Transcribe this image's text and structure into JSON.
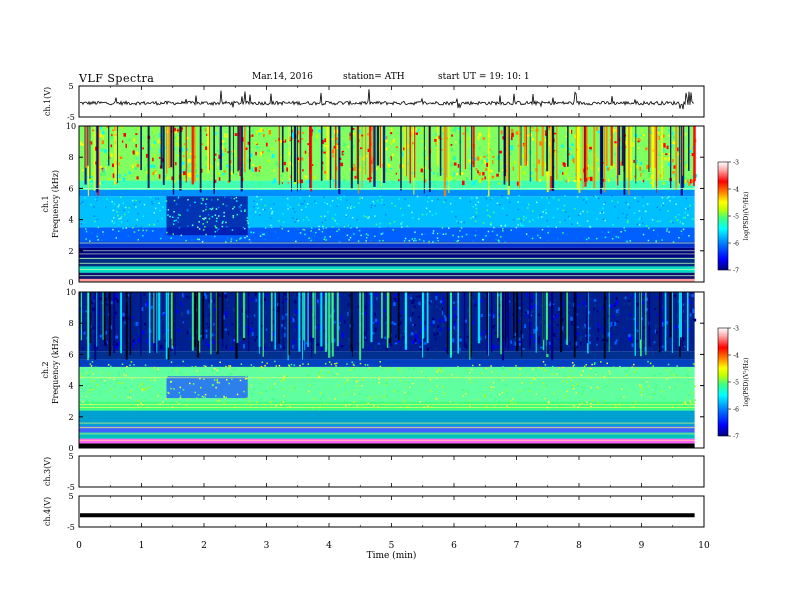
{
  "header": {
    "title": "VLF  Spectra",
    "date": "Mar.14, 2016",
    "station": "station= ATH",
    "start_ut": "start  UT  =   19: 10: 1"
  },
  "chart_data": [
    {
      "id": "ch1-waveform",
      "type": "line",
      "ylabel": "ch.1(V)",
      "ylim": [
        -5,
        5
      ],
      "yticks": [
        "5",
        "-5"
      ],
      "xlim": [
        0,
        10
      ],
      "series": [
        {
          "values_description_baseline": -0.5
        }
      ]
    },
    {
      "id": "ch1-spectrogram",
      "type": "heatmap",
      "ylabel": "ch.1\nFrequency  (kHz)",
      "ylabel_lines": [
        "ch.1",
        "Frequency  (kHz)"
      ],
      "ylim": [
        0,
        10
      ],
      "yticks": [
        "0",
        "2",
        "4",
        "6",
        "8",
        "10"
      ],
      "xlim": [
        0,
        9.8
      ]
    },
    {
      "id": "ch2-spectrogram",
      "type": "heatmap",
      "ylabel_lines": [
        "ch.2",
        "Frequency  (kHz)"
      ],
      "ylim": [
        0,
        10
      ],
      "yticks": [
        "0",
        "2",
        "4",
        "6",
        "8",
        "10"
      ],
      "xlim": [
        0,
        9.8
      ]
    },
    {
      "id": "ch3-waveform",
      "type": "line",
      "ylabel": "ch.3(V)",
      "ylim": [
        -5,
        5
      ],
      "yticks": [
        "5",
        "-5"
      ]
    },
    {
      "id": "ch4-waveform",
      "type": "line",
      "ylabel": "ch.4(V)",
      "ylim": [
        -5,
        5
      ],
      "yticks": [
        "5",
        "-5"
      ],
      "series": [
        {
          "constant_value": -1.2
        }
      ]
    }
  ],
  "xaxis": {
    "label": "Time  (min)",
    "ticks": [
      "0",
      "1",
      "2",
      "3",
      "4",
      "5",
      "6",
      "7",
      "8",
      "9",
      "10"
    ],
    "range": [
      0,
      10
    ]
  },
  "colorbar": {
    "label": "log(PSD)(V²/Hz)",
    "ticks": [
      "-3",
      "-4",
      "-5",
      "-6",
      "-7"
    ],
    "range": [
      -7,
      -3
    ],
    "colors": [
      "#00007f",
      "#0000ff",
      "#0080ff",
      "#00ffff",
      "#40ff80",
      "#c0ff00",
      "#ffff00",
      "#ff8000",
      "#ff0000",
      "#ffa0a0",
      "#ffffff"
    ]
  }
}
